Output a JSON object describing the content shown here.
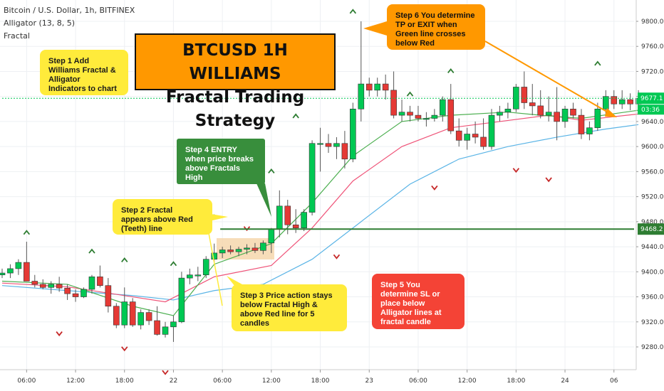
{
  "header": {
    "symbol_line": "Bitcoin / U.S. Dollar, 1h, BITFINEX",
    "indicator_1": "Alligator (13, 8, 5)",
    "indicator_2": "Fractal"
  },
  "title": {
    "line1": "BTCUSD 1H WILLIAMS",
    "line2": "Fractal Trading Strategy"
  },
  "annotations": {
    "step1": "Step 1 Add Williams Fractal & Alligator Indicators to chart",
    "step2": "Step 2 Fractal appears above Red (Teeth) line",
    "step3": "Step 3 Price action stays below Fractal High & above Red line for 5 candles",
    "step4": "Step 4 ENTRY when price breaks above Fractals High",
    "step5": "Step 5 You determine SL or place below Alligator lines at fractal candle",
    "step6": "Step 6 You determine TP or EXIT when Green line crosses below Red"
  },
  "price_labels": {
    "current_price": "9677.1",
    "countdown": "03:36",
    "fractal_level": "9468.2"
  },
  "colors": {
    "up": "#00c853",
    "down": "#e53935",
    "jaw": "#5ab4e6",
    "teeth": "#ef5378",
    "lips": "#4caf50",
    "fractal_line": "#2e7d32",
    "current_label": "#00c853",
    "level_label": "#2e7d32"
  },
  "chart_data": {
    "type": "candlestick",
    "ylim": [
      9260,
      9820
    ],
    "y_ticks": [
      9280,
      9320,
      9360,
      9400,
      9440,
      9480,
      9520,
      9560,
      9600,
      9640,
      9680,
      9720,
      9760,
      9800
    ],
    "x_tick_labels": [
      "06:00",
      "12:00",
      "18:00",
      "22",
      "06:00",
      "12:00",
      "18:00",
      "23",
      "06:00",
      "12:00",
      "18:00",
      "24",
      "06"
    ],
    "x_tick_index": [
      3,
      9,
      15,
      21,
      27,
      33,
      39,
      45,
      51,
      57,
      63,
      69,
      75
    ],
    "ohlc": [
      [
        9395,
        9405,
        9390,
        9398
      ],
      [
        9398,
        9412,
        9390,
        9405
      ],
      [
        9405,
        9420,
        9395,
        9415
      ],
      [
        9415,
        9448,
        9385,
        9385
      ],
      [
        9385,
        9395,
        9375,
        9380
      ],
      [
        9380,
        9388,
        9372,
        9375
      ],
      [
        9375,
        9385,
        9365,
        9380
      ],
      [
        9380,
        9392,
        9368,
        9374
      ],
      [
        9374,
        9380,
        9355,
        9365
      ],
      [
        9365,
        9372,
        9352,
        9360
      ],
      [
        9360,
        9375,
        9358,
        9372
      ],
      [
        9372,
        9395,
        9365,
        9392
      ],
      [
        9392,
        9410,
        9375,
        9378
      ],
      [
        9378,
        9390,
        9335,
        9345
      ],
      [
        9345,
        9350,
        9310,
        9315
      ],
      [
        9315,
        9375,
        9310,
        9352
      ],
      [
        9352,
        9358,
        9312,
        9315
      ],
      [
        9315,
        9340,
        9308,
        9335
      ],
      [
        9335,
        9340,
        9315,
        9322
      ],
      [
        9322,
        9345,
        9298,
        9300
      ],
      [
        9300,
        9320,
        9295,
        9312
      ],
      [
        9312,
        9330,
        9288,
        9320
      ],
      [
        9320,
        9400,
        9318,
        9390
      ],
      [
        9390,
        9405,
        9380,
        9395
      ],
      [
        9395,
        9408,
        9385,
        9395
      ],
      [
        9395,
        9425,
        9390,
        9420
      ],
      [
        9420,
        9445,
        9415,
        9430
      ],
      [
        9430,
        9440,
        9422,
        9435
      ],
      [
        9435,
        9442,
        9428,
        9432
      ],
      [
        9432,
        9440,
        9425,
        9436
      ],
      [
        9436,
        9444,
        9428,
        9438
      ],
      [
        9438,
        9446,
        9430,
        9434
      ],
      [
        9434,
        9450,
        9428,
        9446
      ],
      [
        9446,
        9470,
        9430,
        9468
      ],
      [
        9468,
        9530,
        9455,
        9505
      ],
      [
        9505,
        9515,
        9460,
        9475
      ],
      [
        9475,
        9500,
        9462,
        9470
      ],
      [
        9470,
        9500,
        9465,
        9495
      ],
      [
        9495,
        9610,
        9490,
        9605
      ],
      [
        9605,
        9630,
        9560,
        9605
      ],
      [
        9605,
        9620,
        9590,
        9600
      ],
      [
        9600,
        9615,
        9580,
        9605
      ],
      [
        9605,
        9625,
        9565,
        9580
      ],
      [
        9580,
        9670,
        9575,
        9660
      ],
      [
        9660,
        9800,
        9640,
        9700
      ],
      [
        9700,
        9710,
        9680,
        9690
      ],
      [
        9690,
        9710,
        9680,
        9700
      ],
      [
        9700,
        9715,
        9675,
        9690
      ],
      [
        9690,
        9720,
        9645,
        9650
      ],
      [
        9650,
        9675,
        9640,
        9655
      ],
      [
        9655,
        9665,
        9640,
        9650
      ],
      [
        9650,
        9665,
        9640,
        9645
      ],
      [
        9645,
        9655,
        9632,
        9645
      ],
      [
        9645,
        9660,
        9640,
        9650
      ],
      [
        9650,
        9680,
        9640,
        9675
      ],
      [
        9675,
        9700,
        9620,
        9625
      ],
      [
        9625,
        9645,
        9600,
        9610
      ],
      [
        9610,
        9630,
        9595,
        9620
      ],
      [
        9620,
        9640,
        9605,
        9615
      ],
      [
        9615,
        9645,
        9595,
        9600
      ],
      [
        9600,
        9660,
        9595,
        9650
      ],
      [
        9650,
        9665,
        9640,
        9655
      ],
      [
        9655,
        9670,
        9645,
        9660
      ],
      [
        9660,
        9700,
        9655,
        9695
      ],
      [
        9695,
        9720,
        9660,
        9670
      ],
      [
        9670,
        9700,
        9650,
        9665
      ],
      [
        9665,
        9690,
        9645,
        9650
      ],
      [
        9650,
        9680,
        9640,
        9655
      ],
      [
        9655,
        9695,
        9610,
        9640
      ],
      [
        9640,
        9665,
        9630,
        9660
      ],
      [
        9660,
        9670,
        9645,
        9650
      ],
      [
        9650,
        9660,
        9612,
        9620
      ],
      [
        9620,
        9640,
        9610,
        9630
      ],
      [
        9630,
        9670,
        9625,
        9660
      ],
      [
        9660,
        9690,
        9650,
        9680
      ],
      [
        9680,
        9690,
        9660,
        9668
      ],
      [
        9668,
        9690,
        9660,
        9675
      ],
      [
        9675,
        9685,
        9658,
        9668
      ],
      [
        9668,
        9690,
        9660,
        9677
      ]
    ],
    "alligator": {
      "jaw": [
        [
          0,
          9378
        ],
        [
          8,
          9370
        ],
        [
          16,
          9362
        ],
        [
          21,
          9355
        ],
        [
          26,
          9370
        ],
        [
          32,
          9380
        ],
        [
          38,
          9420
        ],
        [
          44,
          9480
        ],
        [
          50,
          9540
        ],
        [
          56,
          9580
        ],
        [
          62,
          9600
        ],
        [
          68,
          9615
        ],
        [
          74,
          9628
        ],
        [
          78,
          9635
        ]
      ],
      "teeth": [
        [
          0,
          9382
        ],
        [
          8,
          9376
        ],
        [
          16,
          9360
        ],
        [
          20,
          9352
        ],
        [
          26,
          9392
        ],
        [
          33,
          9410
        ],
        [
          38,
          9470
        ],
        [
          43,
          9545
        ],
        [
          49,
          9600
        ],
        [
          55,
          9630
        ],
        [
          61,
          9640
        ],
        [
          67,
          9650
        ],
        [
          71,
          9642
        ],
        [
          78,
          9652
        ]
      ],
      "lips": [
        [
          0,
          9385
        ],
        [
          8,
          9380
        ],
        [
          16,
          9345
        ],
        [
          21,
          9330
        ],
        [
          26,
          9412
        ],
        [
          33,
          9445
        ],
        [
          38,
          9510
        ],
        [
          43,
          9585
        ],
        [
          49,
          9640
        ],
        [
          55,
          9650
        ],
        [
          62,
          9655
        ],
        [
          66,
          9650
        ],
        [
          71,
          9645
        ],
        [
          78,
          9658
        ]
      ]
    },
    "fractal_up": [
      [
        3,
        9462
      ],
      [
        11,
        9432
      ],
      [
        15,
        9418
      ],
      [
        21,
        9412
      ],
      [
        26,
        9487
      ],
      [
        33,
        9560
      ],
      [
        36,
        9648
      ],
      [
        43,
        9815
      ],
      [
        50,
        9683
      ],
      [
        55,
        9720
      ],
      [
        73,
        9732
      ]
    ],
    "fractal_down": [
      [
        7,
        9302
      ],
      [
        15,
        9278
      ],
      [
        20,
        9240
      ],
      [
        30,
        9470
      ],
      [
        41,
        9425
      ],
      [
        53,
        9535
      ],
      [
        63,
        9563
      ],
      [
        67,
        9548
      ]
    ],
    "fractal_high_level": 9468.2,
    "current_price": 9677.1
  }
}
